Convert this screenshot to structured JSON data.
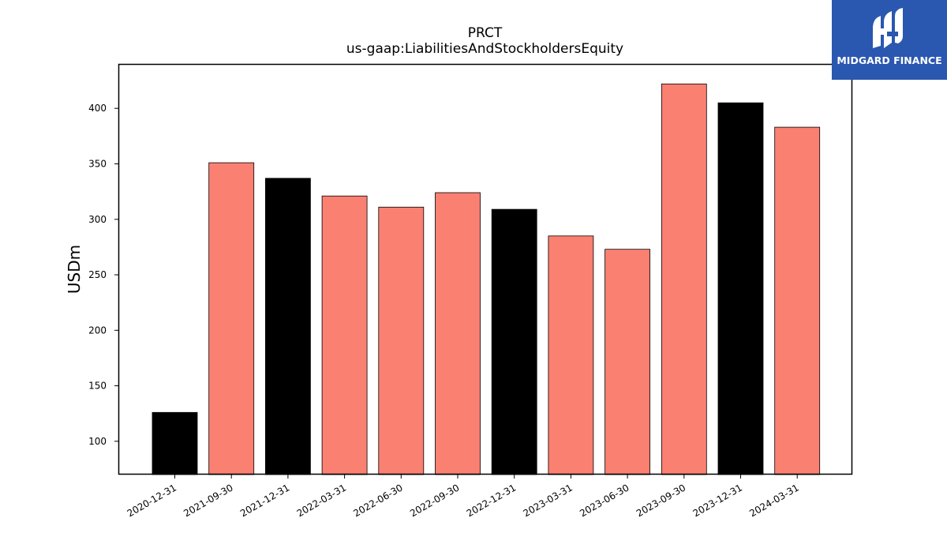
{
  "header": {
    "title": "PRCT",
    "subtitle": "us-gaap:LiabilitiesAndStockholdersEquity"
  },
  "logo": {
    "text": "MIDGARD FINANCE",
    "background_color": "#2a57b0",
    "icon": "midgard-logo-icon"
  },
  "colors": {
    "annual_bar": "#000000",
    "quarter_bar": "#fa8072",
    "axis": "#000000"
  },
  "chart_data": {
    "type": "bar",
    "title": "PRCT",
    "subtitle": "us-gaap:LiabilitiesAndStockholdersEquity",
    "xlabel": "",
    "ylabel": "USDm",
    "ylim": [
      70,
      440
    ],
    "yticks": [
      100,
      150,
      200,
      250,
      300,
      350,
      400
    ],
    "grid": false,
    "categories": [
      "2020-12-31",
      "2021-09-30",
      "2021-12-31",
      "2022-03-31",
      "2022-06-30",
      "2022-09-30",
      "2022-12-31",
      "2023-03-31",
      "2023-06-30",
      "2023-09-30",
      "2023-12-31",
      "2024-03-31"
    ],
    "values": [
      126,
      351,
      337,
      321,
      311,
      324,
      309,
      285,
      273,
      422,
      405,
      383
    ],
    "bar_colors": [
      "#000000",
      "#fa8072",
      "#000000",
      "#fa8072",
      "#fa8072",
      "#fa8072",
      "#000000",
      "#fa8072",
      "#fa8072",
      "#fa8072",
      "#000000",
      "#fa8072"
    ]
  }
}
